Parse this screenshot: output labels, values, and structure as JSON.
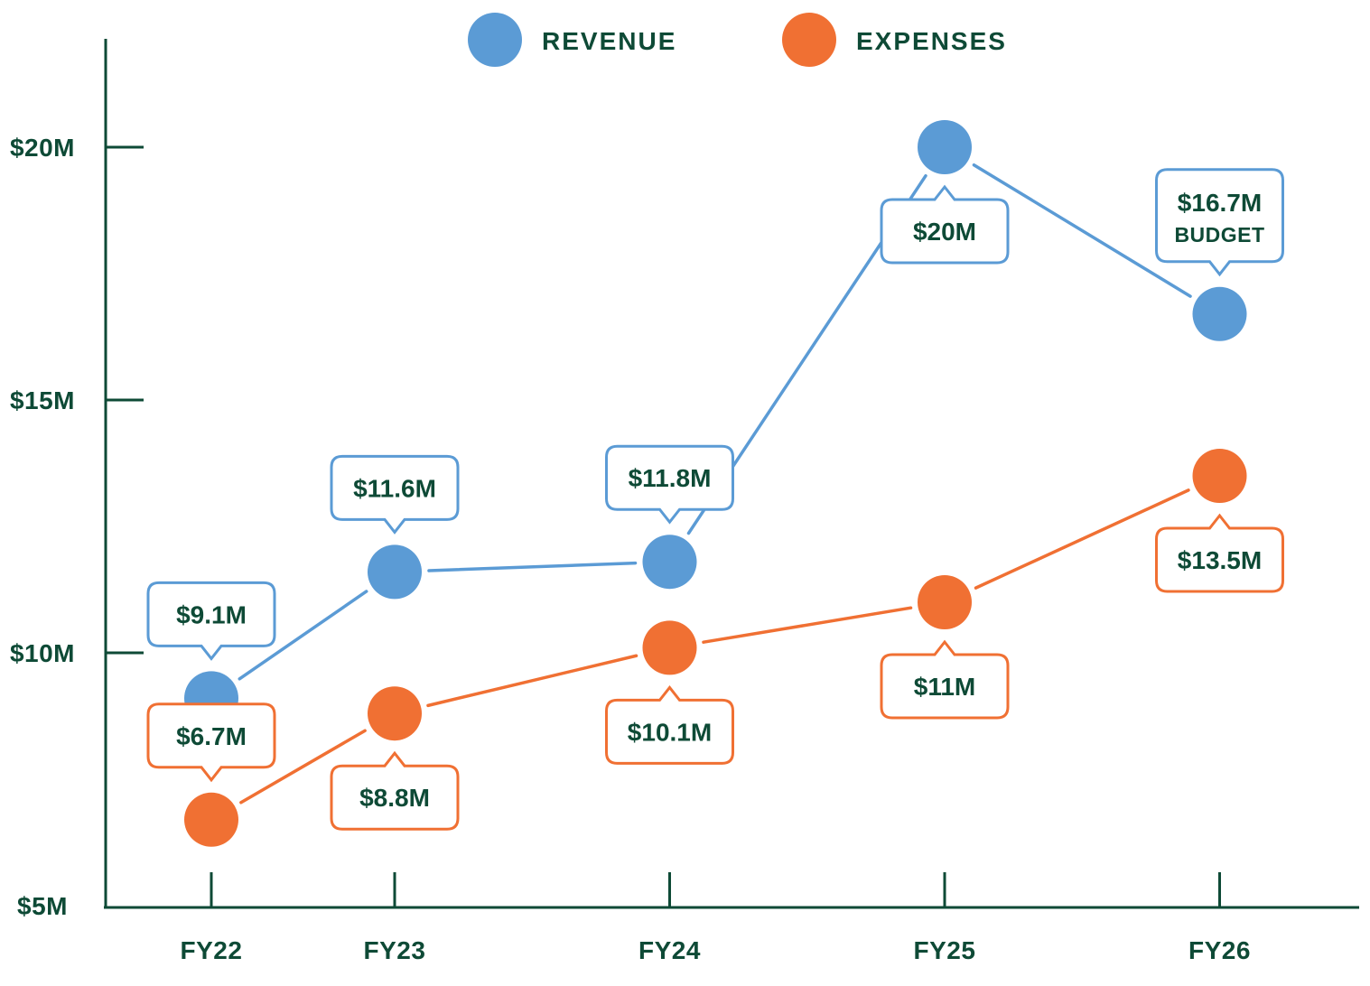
{
  "colors": {
    "axis": "#0e4a36",
    "text": "#0e4a36",
    "revenue": "#5b9bd5",
    "expenses": "#f07033",
    "background": "#ffffff"
  },
  "legend": [
    {
      "label": "REVENUE",
      "color": "#5b9bd5"
    },
    {
      "label": "EXPENSES",
      "color": "#f07033"
    }
  ],
  "chart_data": {
    "type": "line",
    "categories": [
      "FY22",
      "FY23",
      "FY24",
      "FY25",
      "FY26"
    ],
    "x": [
      0,
      1,
      2.5,
      4,
      5.5
    ],
    "series": [
      {
        "name": "REVENUE",
        "color": "#5b9bd5",
        "values": [
          9.1,
          11.6,
          11.8,
          20,
          16.7
        ],
        "data_labels": [
          "$9.1M",
          "$11.6M",
          "$11.8M",
          "$20M",
          "$16.7M"
        ],
        "sub_labels": [
          "",
          "",
          "",
          "",
          "BUDGET"
        ],
        "label_position": [
          "above",
          "above",
          "above",
          "below",
          "above"
        ]
      },
      {
        "name": "EXPENSES",
        "color": "#f07033",
        "values": [
          6.7,
          8.8,
          10.1,
          11,
          13.5
        ],
        "data_labels": [
          "$6.7M",
          "$8.8M",
          "$10.1M",
          "$11M",
          "$13.5M"
        ],
        "sub_labels": [
          "",
          "",
          "",
          "",
          ""
        ],
        "label_position": [
          "above",
          "below",
          "below",
          "below",
          "below"
        ]
      }
    ],
    "ylim": [
      5,
      22
    ],
    "yticks": [
      5,
      10,
      15,
      20
    ],
    "ytick_labels": [
      "$5M",
      "$10M",
      "$15M",
      "$20M"
    ],
    "title": "",
    "xlabel": "",
    "ylabel": "",
    "legend_position": "top-center",
    "grid": false
  }
}
